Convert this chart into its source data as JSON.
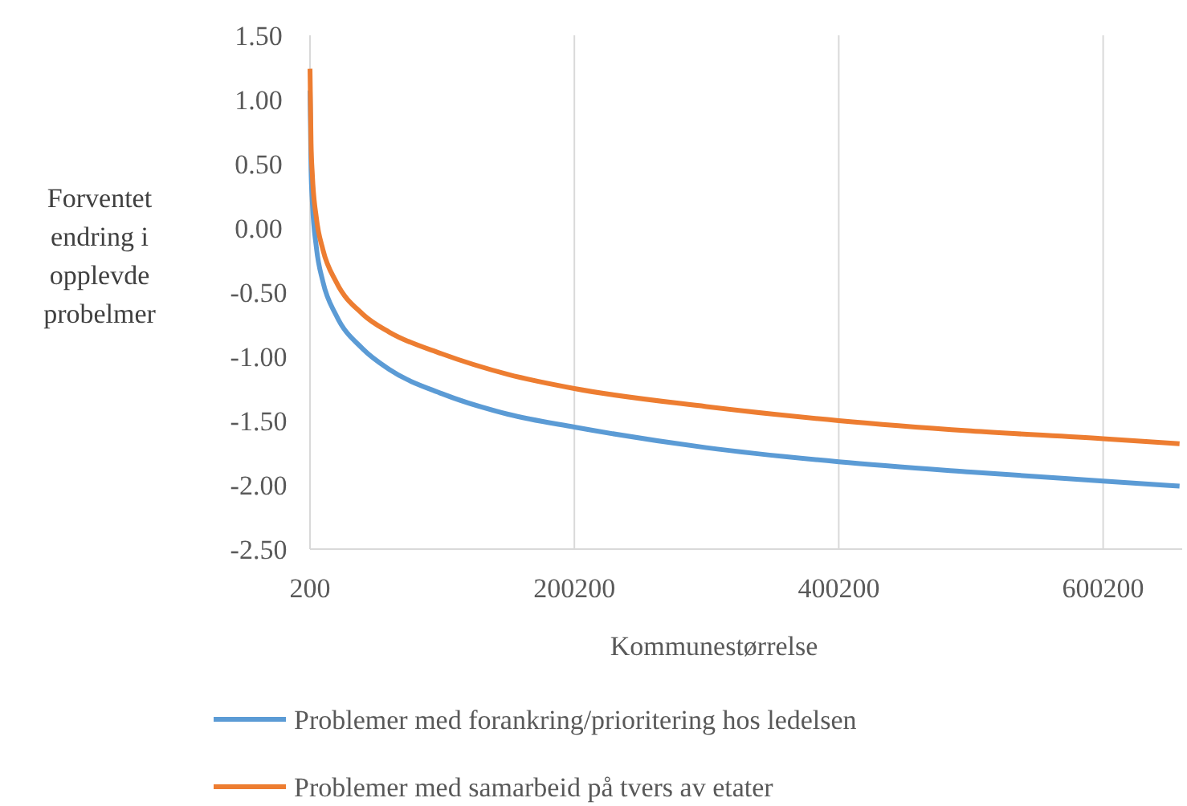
{
  "chart_data": {
    "type": "line",
    "xlabel": "Kommunestørrelse",
    "ylabel": "Forventet endring i opplevde probelmer",
    "x": [
      200,
      1000,
      2000,
      5000,
      10000,
      20000,
      40000,
      60000,
      100000,
      150000,
      200200,
      300000,
      400200,
      500000,
      600200,
      658000
    ],
    "series": [
      {
        "name": "Problemer med forankring/prioritering hos ledelsen",
        "color": "#5b9bd5",
        "values": [
          1.07,
          0.46,
          0.2,
          -0.15,
          -0.42,
          -0.68,
          -0.94,
          -1.1,
          -1.29,
          -1.45,
          -1.55,
          -1.71,
          -1.82,
          -1.9,
          -1.97,
          -2.01
        ]
      },
      {
        "name": "Problemer med samarbeid på tvers av etater",
        "color": "#ed7d31",
        "values": [
          1.24,
          0.66,
          0.41,
          0.08,
          -0.17,
          -0.42,
          -0.67,
          -0.81,
          -0.98,
          -1.14,
          -1.25,
          -1.39,
          -1.5,
          -1.58,
          -1.64,
          -1.68
        ]
      }
    ],
    "xlim": [
      200,
      660000
    ],
    "xticks": [
      200,
      200200,
      400200,
      600200
    ],
    "ylim": [
      -2.5,
      1.5
    ],
    "yticks": [
      {
        "value": -2.5,
        "label": "-2.50"
      },
      {
        "value": -2,
        "label": "-2.00"
      },
      {
        "value": -1.5,
        "label": "-1.50"
      },
      {
        "value": -1,
        "label": "-1.00"
      },
      {
        "value": -0.5,
        "label": "-0.50"
      },
      {
        "value": 0,
        "label": "0.00"
      },
      {
        "value": 0.5,
        "label": "0.50"
      },
      {
        "value": 1,
        "label": "1.00"
      },
      {
        "value": 1.5,
        "label": "1.50"
      }
    ],
    "grid": "x",
    "legend": "bottom",
    "marker": "none",
    "line_style": "solid"
  }
}
